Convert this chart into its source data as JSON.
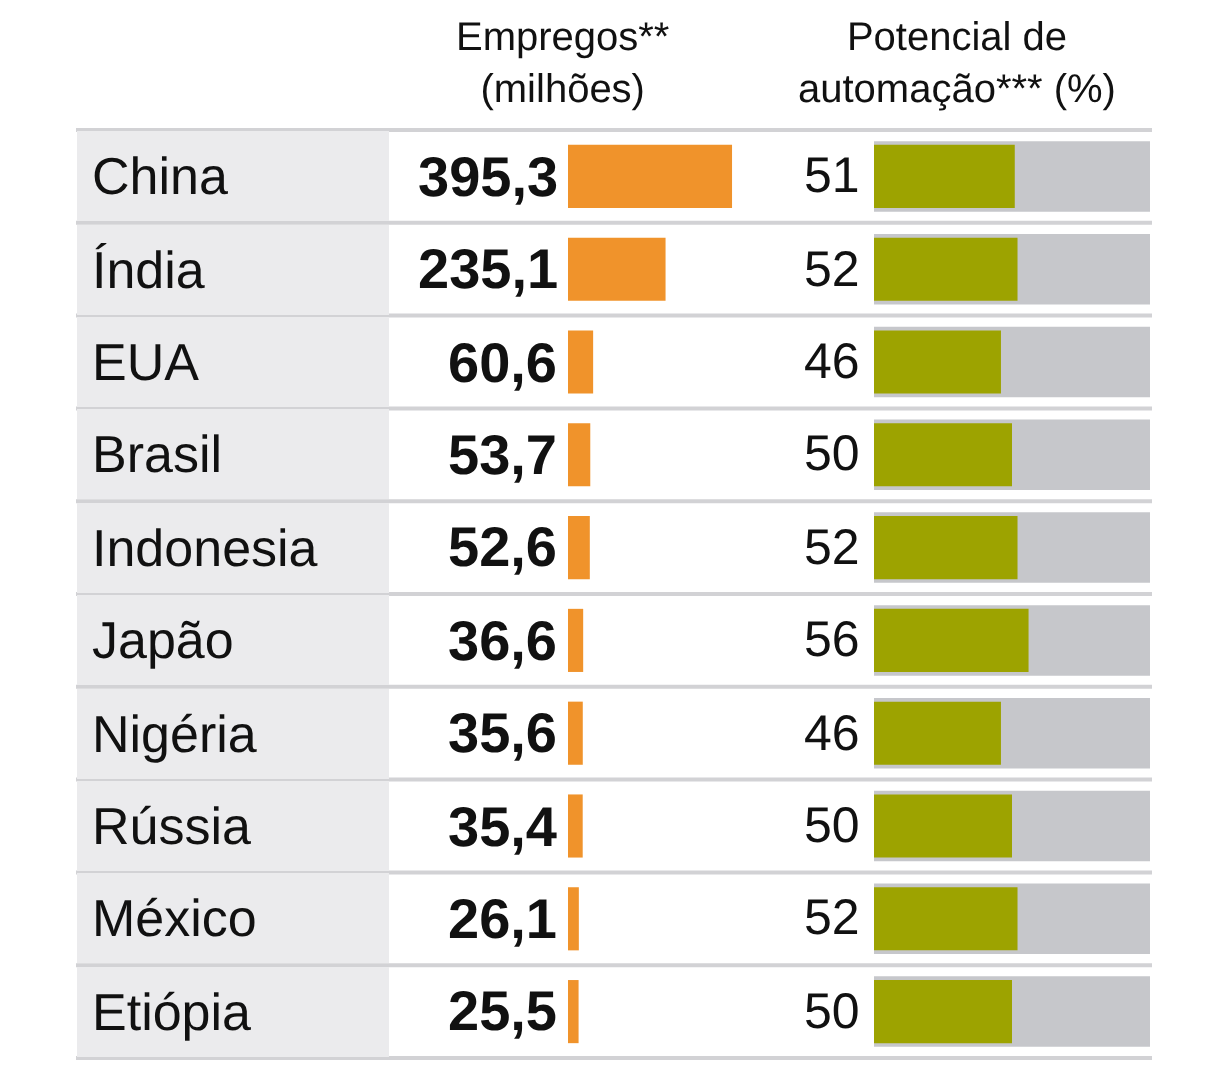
{
  "chart_data": [
    {
      "type": "bar",
      "orientation": "horizontal",
      "title": "Empregos**\n(milhões)",
      "categories": [
        "China",
        "Índia",
        "EUA",
        "Brasil",
        "Indonesia",
        "Japão",
        "Nigéria",
        "Rússia",
        "México",
        "Etiópia"
      ],
      "values": [
        395.3,
        235.1,
        60.6,
        53.7,
        52.6,
        36.6,
        35.6,
        35.4,
        26.1,
        25.5
      ],
      "value_labels": [
        "395,3",
        "235,1",
        "60,6",
        "53,7",
        "52,6",
        "36,6",
        "35,6",
        "35,4",
        "26,1",
        "25,5"
      ],
      "color": "#f0932b",
      "xlim": [
        0,
        400
      ],
      "tick_labels": "y",
      "grid": "y"
    },
    {
      "type": "bar",
      "orientation": "horizontal",
      "title": "Potencial de\nautomação*** (%)",
      "categories": [
        "China",
        "Índia",
        "EUA",
        "Brasil",
        "Indonesia",
        "Japão",
        "Nigéria",
        "Rússia",
        "México",
        "Etiópia"
      ],
      "values": [
        51,
        52,
        46,
        50,
        52,
        56,
        46,
        50,
        52,
        50
      ],
      "data_labels": true,
      "color": "#9da300",
      "xlim": [
        0,
        100
      ],
      "bands": [
        {
          "axis": "x",
          "from": 0,
          "to": 100,
          "color": "#c6c7cb"
        }
      ],
      "tick_labels": false,
      "grid": "y"
    }
  ]
}
